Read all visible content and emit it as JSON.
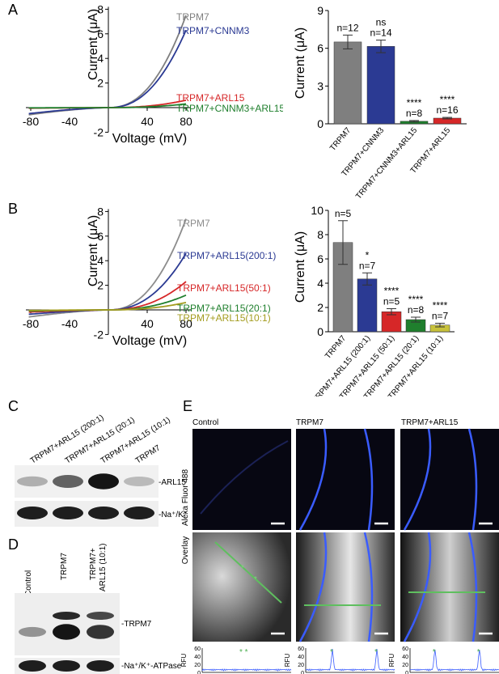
{
  "panel_letters": {
    "a": "A",
    "b": "B",
    "c": "C",
    "d": "D",
    "e": "E"
  },
  "iv_axes": {
    "ylabel": "Current (μA)",
    "xlabel": "Voltage (mV)",
    "a_xticks": [
      "-80",
      "-40",
      "40",
      "80"
    ],
    "a_yticks": [
      "8",
      "6",
      "4",
      "2",
      "-2"
    ],
    "b_xticks": [
      "-80",
      "-40",
      "40",
      "80"
    ],
    "b_yticks": [
      "8",
      "6",
      "4",
      "2",
      "-2"
    ]
  },
  "panelA_iv": {
    "curves": [
      {
        "name": "TRPM7",
        "color": "#7f7f7f",
        "i80": 7.5
      },
      {
        "name": "TRPM7+CNNM3",
        "color": "#2b3a93",
        "i80": 6.3
      },
      {
        "name": "TRPM7+ARL15",
        "color": "#d62728",
        "i80": 0.6
      },
      {
        "name": "TRPM7+CNNM3+ARL15",
        "color": "#1f7f2d",
        "i80": 0.3
      }
    ]
  },
  "panelB_iv": {
    "curves": [
      {
        "name": "TRPM7",
        "color": "#8c8c8c",
        "i80": 7.4
      },
      {
        "name": "TRPM7+ARL15(200:1)",
        "color": "#2b3a93",
        "i80": 4.6
      },
      {
        "name": "TRPM7+ARL15(50:1)",
        "color": "#d62728",
        "i80": 2.3
      },
      {
        "name": "TRPM7+ARL15(20:1)",
        "color": "#1f7f2d",
        "i80": 1.2
      },
      {
        "name": "TRPM7+ARL15(10:1)",
        "color": "#a39c1f",
        "i80": 0.6
      }
    ]
  },
  "chart_data": [
    {
      "type": "bar",
      "ylabel": "Current (μA)",
      "ylim": [
        0,
        9
      ],
      "yticks": [
        "0",
        "3",
        "6",
        "9"
      ],
      "categories": [
        "TRPM7",
        "TRPM7+CNNM3",
        "TRPM7+CNNM3+ARL15",
        "TRPM7+ARL15"
      ],
      "values": [
        6.5,
        6.15,
        0.2,
        0.45
      ],
      "errors": [
        0.55,
        0.5,
        0.06,
        0.06
      ],
      "colors": [
        "#7f7f7f",
        "#2b3a93",
        "#1f7f2d",
        "#d62728"
      ],
      "n_labels": [
        "n=12",
        "n=14",
        "n=8",
        "n=16"
      ],
      "sig": [
        "",
        "ns",
        "****",
        "****"
      ]
    },
    {
      "type": "bar",
      "ylabel": "Current (μA)",
      "ylim": [
        0,
        10
      ],
      "yticks": [
        "0",
        "2",
        "4",
        "6",
        "8",
        "10"
      ],
      "categories": [
        "TRPM7",
        "TRPM7+ARL15 (200:1)",
        "TRPM7+ARL15 (50:1)",
        "TRPM7+ARL15 (20:1)",
        "TRPM7+ARL15 (10:1)"
      ],
      "values": [
        7.35,
        4.35,
        1.65,
        1.0,
        0.55
      ],
      "errors": [
        1.8,
        0.5,
        0.25,
        0.2,
        0.15
      ],
      "colors": [
        "#7f7f7f",
        "#2b3a93",
        "#d62728",
        "#1f7f2d",
        "#c8c23b"
      ],
      "n_labels": [
        "n=5",
        "n=7",
        "n=5",
        "n=8",
        "n=7"
      ],
      "sig": [
        "",
        "*",
        "****",
        "****",
        "****"
      ]
    },
    {
      "type": "line",
      "ylabel": "RFU",
      "ylim": [
        0,
        60
      ],
      "yticks": [
        "0",
        "20",
        "40",
        "60"
      ],
      "profiles": [
        {
          "name": "Control",
          "peaks": []
        },
        {
          "name": "TRPM7",
          "peaks": [
            0.3,
            0.8
          ]
        },
        {
          "name": "TRPM7+ARL15",
          "peaks": [
            0.28,
            0.78
          ]
        }
      ]
    }
  ],
  "panelC": {
    "lanes": [
      "TRPM7+ARL15 (200:1)",
      "TRPM7+ARL15 (20:1)",
      "TRPM7+ARL15 (10:1)",
      "TRPM7"
    ],
    "band1": "-ARL15",
    "band2": "-Na⁺/K⁺-ATPase",
    "arl15_intensity": [
      0.25,
      0.6,
      0.95,
      0.2
    ]
  },
  "panelD": {
    "lanes": [
      "Control",
      "TRPM7",
      "TRPM7+\nARL15 (10:1)"
    ],
    "lane3_line1": "TRPM7+",
    "lane3_line2": "ARL15 (10:1)",
    "band1": "-TRPM7",
    "band2": "-Na⁺/K⁺-ATPase"
  },
  "panelE": {
    "columns": [
      "Control",
      "TRPM7",
      "TRPM7+ARL15"
    ],
    "row1_label": "Alexa Fluor 488",
    "row2_label": "Overlay",
    "star": "* *"
  }
}
